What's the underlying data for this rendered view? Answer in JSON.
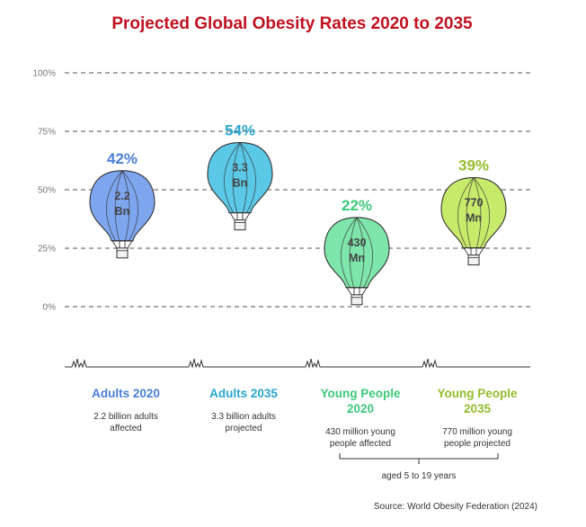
{
  "chart_data": {
    "type": "bar",
    "title": "Projected Global Obesity Rates 2020 to 2035",
    "y_ticks": [
      "100%",
      "75%",
      "50%",
      "25%",
      "0%"
    ],
    "ylim": [
      0,
      100
    ],
    "grid": true,
    "categories": [
      {
        "label_lines": [
          "Adults 2020"
        ],
        "value": 42,
        "value_label": "42%",
        "inner_lines": [
          "2.2",
          "Bn"
        ],
        "desc_lines": [
          "2.2 billion adults",
          "affected"
        ],
        "color": "#7ea6ee",
        "text_color": "#4a7ed8"
      },
      {
        "label_lines": [
          "Adults 2035"
        ],
        "value": 54,
        "value_label": "54%",
        "inner_lines": [
          "3.3",
          "Bn"
        ],
        "desc_lines": [
          "3.3 billion adults",
          "projected"
        ],
        "color": "#5ac8e6",
        "text_color": "#2aa7cf"
      },
      {
        "label_lines": [
          "Young People",
          "2020"
        ],
        "value": 22,
        "value_label": "22%",
        "inner_lines": [
          "430",
          "Mn"
        ],
        "desc_lines": [
          "430 million young",
          "people affected"
        ],
        "color": "#7fe6ab",
        "text_color": "#3cc97b"
      },
      {
        "label_lines": [
          "Young People",
          "2035"
        ],
        "value": 39,
        "value_label": "39%",
        "inner_lines": [
          "770",
          "Mn"
        ],
        "desc_lines": [
          "770 million young",
          "people projected"
        ],
        "color": "#c7ea6a",
        "text_color": "#92bd2a"
      }
    ],
    "bracket_note": "aged 5 to 19 years",
    "source": "Source: World Obesity Federation (2024)"
  }
}
